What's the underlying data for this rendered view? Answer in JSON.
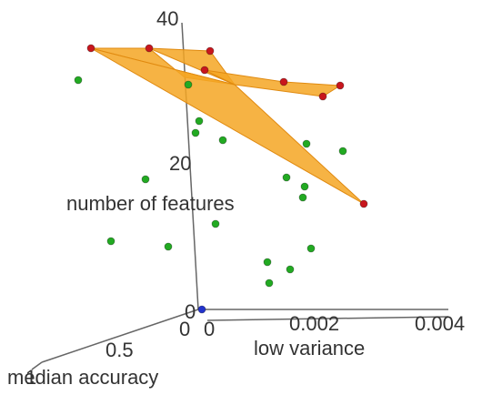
{
  "chart_data": {
    "type": "scatter",
    "projection": "3d",
    "title": "",
    "axes": {
      "x": {
        "label": "low variance",
        "ticks": [
          "0",
          "0.002",
          "0.004"
        ],
        "range": [
          0,
          0.004
        ]
      },
      "y": {
        "label": "median accuracy",
        "ticks": [
          "0",
          "0.5",
          "1"
        ],
        "range": [
          0,
          1
        ]
      },
      "z": {
        "label": "number of features",
        "ticks": [
          "0",
          "20",
          "40"
        ],
        "range": [
          0,
          40
        ]
      }
    },
    "colors": {
      "pareto_points": "#c8161d",
      "other_points": "#22aa22",
      "origin_point": "#2233cc",
      "surface": "#f5a623"
    },
    "legend": "none",
    "grid": false
  }
}
